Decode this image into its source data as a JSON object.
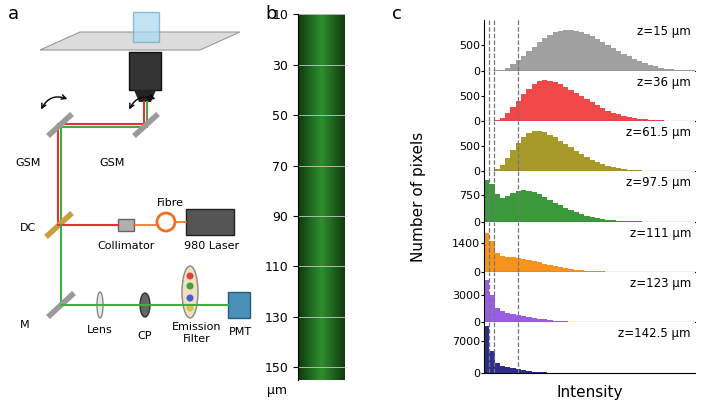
{
  "diagram": {
    "label": "a",
    "texts": {
      "gsm_left": "GSM",
      "gsm_right": "GSM",
      "dc": "DC",
      "fibre": "Fibre",
      "collimator": "Collimator",
      "laser": "980 Laser",
      "mirror": "M",
      "lens": "Lens",
      "cp": "CP",
      "filter": "Emission\nFilter",
      "pmt": "PMT"
    }
  },
  "volume": {
    "label": "b",
    "ylim": [
      10,
      155
    ],
    "yticks": [
      10,
      30,
      50,
      70,
      90,
      110,
      130,
      150
    ],
    "unit": "μm"
  },
  "panel_c": {
    "label": "c",
    "xlabel": "Intensity",
    "ylabel": "Number of pixels",
    "vlines": [
      2.5,
      4.5,
      16
    ]
  },
  "chart_data": [
    {
      "type": "histogram",
      "title": "z=15 μm",
      "color": "#a0a0a0",
      "tick_labels": "y",
      "xlim": [
        0,
        100
      ],
      "ylim": [
        0,
        1000
      ],
      "yticks": [
        0,
        500
      ],
      "bins": [
        0,
        2.5,
        5,
        7.5,
        10,
        12.5,
        15,
        17.5,
        20,
        22.5,
        25,
        27.5,
        30,
        32.5,
        35,
        37.5,
        40,
        42.5,
        45,
        47.5,
        50,
        52.5,
        55,
        57.5,
        60,
        62.5,
        65,
        67.5,
        70,
        72.5,
        75,
        77.5,
        80,
        82.5,
        85,
        87.5,
        90,
        92.5,
        95,
        97.5,
        100
      ],
      "counts": [
        0,
        0,
        5,
        20,
        60,
        120,
        200,
        290,
        380,
        470,
        560,
        640,
        705,
        755,
        790,
        805,
        800,
        785,
        760,
        725,
        680,
        630,
        575,
        515,
        455,
        395,
        335,
        280,
        230,
        185,
        145,
        110,
        80,
        58,
        40,
        27,
        17,
        10,
        6,
        3
      ]
    },
    {
      "type": "histogram",
      "title": "z=36 μm",
      "color": "#f04848",
      "tick_labels": "y",
      "xlim": [
        0,
        100
      ],
      "ylim": [
        0,
        1000
      ],
      "yticks": [
        0,
        500
      ],
      "bins": [
        0,
        2.5,
        5,
        7.5,
        10,
        12.5,
        15,
        17.5,
        20,
        22.5,
        25,
        27.5,
        30,
        32.5,
        35,
        37.5,
        40,
        42.5,
        45,
        47.5,
        50,
        52.5,
        55,
        57.5,
        60,
        62.5,
        65,
        67.5,
        70,
        72.5,
        75,
        77.5,
        80,
        82.5,
        85,
        87.5,
        90,
        92.5,
        95,
        97.5,
        100
      ],
      "counts": [
        0,
        0,
        15,
        60,
        150,
        270,
        400,
        530,
        640,
        730,
        785,
        805,
        795,
        770,
        730,
        680,
        620,
        560,
        495,
        430,
        370,
        310,
        255,
        205,
        165,
        128,
        98,
        74,
        55,
        40,
        29,
        20,
        14,
        9,
        6,
        4,
        2,
        1,
        1,
        0
      ]
    },
    {
      "type": "histogram",
      "title": "z=61.5 μm",
      "color": "#a89a28",
      "tick_labels": "y",
      "xlim": [
        0,
        100
      ],
      "ylim": [
        0,
        1000
      ],
      "yticks": [
        0,
        500
      ],
      "bins": [
        0,
        2.5,
        5,
        7.5,
        10,
        12.5,
        15,
        17.5,
        20,
        22.5,
        25,
        27.5,
        30,
        32.5,
        35,
        37.5,
        40,
        42.5,
        45,
        47.5,
        50,
        52.5,
        55,
        57.5,
        60,
        62.5,
        65,
        67.5,
        70,
        72.5,
        75,
        77.5,
        80,
        82.5,
        85,
        87.5,
        90,
        92.5,
        95,
        97.5,
        100
      ],
      "counts": [
        0,
        5,
        40,
        130,
        270,
        420,
        560,
        680,
        760,
        805,
        800,
        775,
        730,
        675,
        610,
        545,
        475,
        410,
        345,
        285,
        232,
        185,
        145,
        112,
        85,
        64,
        47,
        34,
        24,
        17,
        11,
        7,
        5,
        3,
        2,
        1,
        1,
        0,
        0,
        0
      ]
    },
    {
      "type": "histogram",
      "title": "z=97.5 μm",
      "color": "#3a9a3a",
      "tick_labels": "y",
      "xlim": [
        0,
        100
      ],
      "ylim": [
        0,
        1400
      ],
      "yticks": [
        0,
        750
      ],
      "bins": [
        0,
        2.5,
        5,
        7.5,
        10,
        12.5,
        15,
        17.5,
        20,
        22.5,
        25,
        27.5,
        30,
        32.5,
        35,
        37.5,
        40,
        42.5,
        45,
        47.5,
        50,
        52.5,
        55,
        57.5,
        60,
        62.5,
        65,
        67.5,
        70,
        72.5,
        75,
        77.5,
        80,
        82.5,
        85,
        87.5,
        90,
        92.5,
        95,
        97.5,
        100
      ],
      "counts": [
        1150,
        1050,
        760,
        670,
        720,
        800,
        860,
        880,
        860,
        820,
        760,
        690,
        610,
        530,
        455,
        380,
        315,
        255,
        205,
        160,
        125,
        95,
        70,
        52,
        38,
        27,
        19,
        13,
        9,
        6,
        4,
        3,
        2,
        1,
        1,
        0,
        0,
        0,
        0,
        0
      ]
    },
    {
      "type": "histogram",
      "title": "z=111 μm",
      "color": "#f7941d",
      "tick_labels": "y",
      "xlim": [
        0,
        100
      ],
      "ylim": [
        0,
        2400
      ],
      "yticks": [
        0,
        1400
      ],
      "bins": [
        0,
        2.5,
        5,
        7.5,
        10,
        12.5,
        15,
        17.5,
        20,
        22.5,
        25,
        27.5,
        30,
        32.5,
        35,
        37.5,
        40,
        42.5,
        45,
        47.5,
        50,
        52.5,
        55,
        57.5,
        60,
        62.5,
        65,
        67.5,
        70,
        72.5,
        75,
        77.5,
        80,
        82.5,
        85,
        87.5,
        90,
        92.5,
        95,
        97.5,
        100
      ],
      "counts": [
        1850,
        1500,
        900,
        760,
        720,
        700,
        670,
        630,
        580,
        525,
        465,
        405,
        345,
        290,
        240,
        195,
        155,
        120,
        92,
        70,
        52,
        38,
        28,
        20,
        14,
        10,
        7,
        5,
        3,
        2,
        1,
        1,
        0,
        0,
        0,
        0,
        0,
        0,
        0,
        0
      ]
    },
    {
      "type": "histogram",
      "title": "z=123 μm",
      "color": "#9b5de5",
      "tick_labels": "y",
      "xlim": [
        0,
        100
      ],
      "ylim": [
        0,
        5500
      ],
      "yticks": [
        0,
        3000
      ],
      "bins": [
        0,
        2.5,
        5,
        7.5,
        10,
        12.5,
        15,
        17.5,
        20,
        22.5,
        25,
        27.5,
        30,
        32.5,
        35,
        37.5,
        40,
        42.5,
        45,
        47.5,
        50,
        52.5,
        55,
        57.5,
        60,
        62.5,
        65,
        67.5,
        70,
        72.5,
        75,
        77.5,
        80,
        82.5,
        85,
        87.5,
        90,
        92.5,
        95,
        97.5,
        100
      ],
      "counts": [
        4600,
        3000,
        1600,
        1200,
        1050,
        950,
        850,
        740,
        630,
        520,
        420,
        330,
        255,
        190,
        140,
        100,
        70,
        48,
        32,
        21,
        14,
        9,
        6,
        4,
        2,
        1,
        1,
        0,
        0,
        0,
        0,
        0,
        0,
        0,
        0,
        0,
        0,
        0,
        0,
        0
      ]
    },
    {
      "type": "histogram",
      "title": "z=142.5 μm",
      "color": "#2e2e8a",
      "tick_labels": "y",
      "xlim": [
        0,
        100
      ],
      "ylim": [
        0,
        11000
      ],
      "yticks": [
        0,
        7000
      ],
      "bins": [
        0,
        2.5,
        5,
        7.5,
        10,
        12.5,
        15,
        17.5,
        20,
        22.5,
        25,
        27.5,
        30,
        32.5,
        35,
        37.5,
        40,
        42.5,
        45,
        47.5,
        50,
        52.5,
        55,
        57.5,
        60,
        62.5,
        65,
        67.5,
        70,
        72.5,
        75,
        77.5,
        80,
        82.5,
        85,
        87.5,
        90,
        92.5,
        95,
        97.5,
        100
      ],
      "counts": [
        10200,
        4800,
        2200,
        1500,
        1200,
        950,
        720,
        520,
        360,
        240,
        155,
        98,
        60,
        36,
        21,
        12,
        7,
        4,
        2,
        1,
        0,
        0,
        0,
        0,
        0,
        0,
        0,
        0,
        0,
        0,
        0,
        0,
        0,
        0,
        0,
        0,
        0,
        0,
        0,
        0
      ]
    }
  ]
}
